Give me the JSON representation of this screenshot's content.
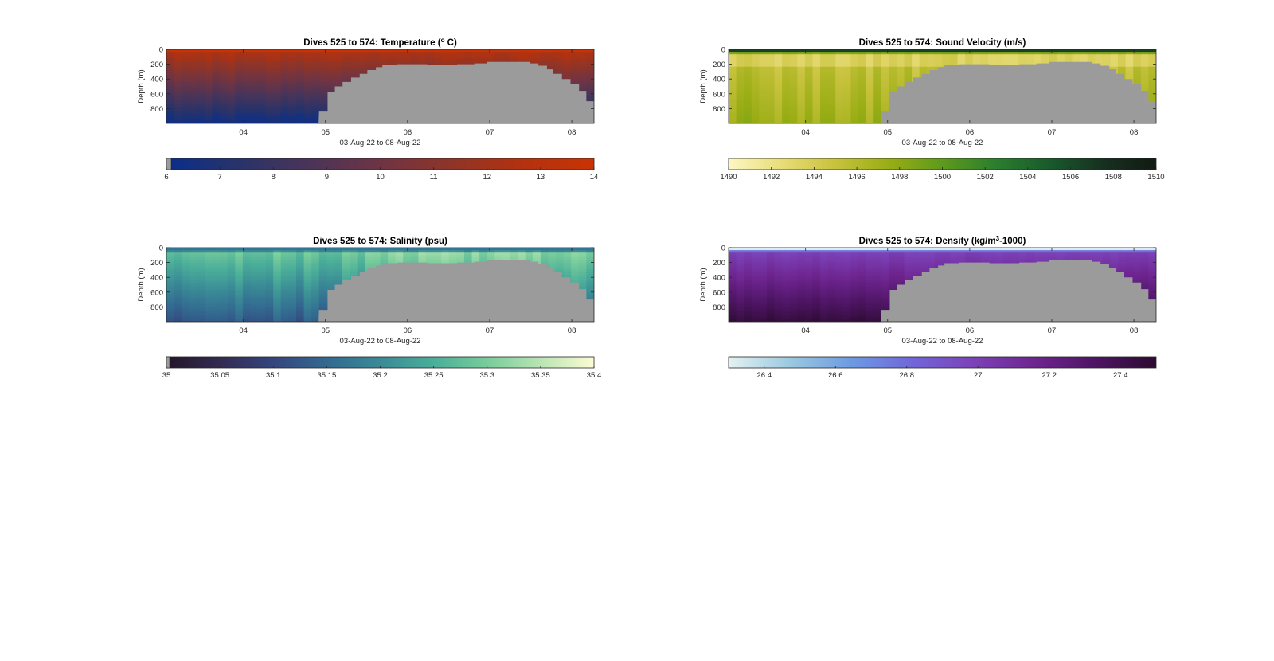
{
  "figure": {
    "chart_data": [
      {
        "type": "heatmap",
        "title_main": "Dives 525 to 574: Temperature (",
        "title_sup": "o",
        "title_tail": " C)",
        "xlabel": "03-Aug-22 to 08-Aug-22",
        "ylabel": "Depth (m)",
        "x_ticks": [
          "04",
          "05",
          "06",
          "07",
          "08"
        ],
        "y_ticks": [
          "0",
          "200",
          "400",
          "600",
          "800"
        ],
        "xlim": [
          "03-Aug-22 02:20",
          "08-Aug-22 07:30"
        ],
        "ylim": [
          1000,
          0
        ],
        "bathymetry_color": "#9b9b9b",
        "colormap": [
          "#0a2e8a",
          "#28336a",
          "#4a3458",
          "#6e3444",
          "#8f3428",
          "#b3320f",
          "#c93305"
        ],
        "value_range": [
          6,
          14
        ],
        "colorbar_ticks": [
          "6",
          "7",
          "8",
          "9",
          "10",
          "11",
          "12",
          "13",
          "14"
        ],
        "colorbar_values": [
          6,
          7,
          8,
          9,
          10,
          11,
          12,
          13,
          14
        ]
      },
      {
        "type": "heatmap",
        "title_main": "Dives 525 to 574: Sound Velocity (m/s)",
        "title_sup": "",
        "title_tail": "",
        "xlabel": "03-Aug-22 to 08-Aug-22",
        "ylabel": "Depth (m)",
        "x_ticks": [
          "04",
          "05",
          "06",
          "07",
          "08"
        ],
        "y_ticks": [
          "0",
          "200",
          "400",
          "600",
          "800"
        ],
        "xlim": [
          "03-Aug-22 02:20",
          "08-Aug-22 07:30"
        ],
        "ylim": [
          1000,
          0
        ],
        "bathymetry_color": "#9b9b9b",
        "colormap": [
          "#fdf7c4",
          "#e8dc78",
          "#c7c23c",
          "#99ad14",
          "#5e9a1c",
          "#2b7e2e",
          "#195a2c",
          "#173020",
          "#111a12"
        ],
        "value_range": [
          1490,
          1510
        ],
        "colorbar_ticks": [
          "1490",
          "1492",
          "1494",
          "1496",
          "1498",
          "1500",
          "1502",
          "1504",
          "1506",
          "1508",
          "1510"
        ],
        "colorbar_values": [
          1490,
          1492,
          1494,
          1496,
          1498,
          1500,
          1502,
          1504,
          1506,
          1508,
          1510
        ]
      },
      {
        "type": "heatmap",
        "title_main": "Dives 525 to 574: Salinity (psu)",
        "title_sup": "",
        "title_tail": "",
        "xlabel": "03-Aug-22 to 08-Aug-22",
        "ylabel": "Depth (m)",
        "x_ticks": [
          "04",
          "05",
          "06",
          "07",
          "08"
        ],
        "y_ticks": [
          "0",
          "200",
          "400",
          "600",
          "800"
        ],
        "xlim": [
          "03-Aug-22 02:20",
          "08-Aug-22 07:30"
        ],
        "ylim": [
          1000,
          0
        ],
        "bathymetry_color": "#9b9b9b",
        "colormap": [
          "#231628",
          "#332a52",
          "#34457d",
          "#336990",
          "#3a8a96",
          "#4aae99",
          "#79cc9b",
          "#b9e4b4",
          "#fdfbd2"
        ],
        "value_range": [
          35,
          35.4
        ],
        "colorbar_ticks": [
          "35",
          "35.05",
          "35.1",
          "35.15",
          "35.2",
          "35.25",
          "35.3",
          "35.35",
          "35.4"
        ],
        "colorbar_values": [
          35,
          35.05,
          35.1,
          35.15,
          35.2,
          35.25,
          35.3,
          35.35,
          35.4
        ]
      },
      {
        "type": "heatmap",
        "title_main": "Dives 525 to 574: Density (kg/m",
        "title_sup": "3",
        "title_tail": "-1000)",
        "xlabel": "03-Aug-22 to 08-Aug-22",
        "ylabel": "Depth (m)",
        "x_ticks": [
          "04",
          "05",
          "06",
          "07",
          "08"
        ],
        "y_ticks": [
          "0",
          "200",
          "400",
          "600",
          "800"
        ],
        "xlim": [
          "03-Aug-22 02:20",
          "08-Aug-22 07:30"
        ],
        "ylim": [
          1000,
          0
        ],
        "bathymetry_color": "#9b9b9b",
        "colormap": [
          "#e5f1f1",
          "#9bc9e0",
          "#6c9be2",
          "#7166d9",
          "#7c42b8",
          "#6e2590",
          "#4e1564",
          "#2c0b30"
        ],
        "value_range": [
          26.3,
          27.5
        ],
        "colorbar_ticks": [
          "26.4",
          "26.6",
          "26.8",
          "27",
          "27.2",
          "27.4"
        ],
        "colorbar_values": [
          26.4,
          26.6,
          26.8,
          27,
          27.2,
          27.4
        ]
      }
    ]
  }
}
